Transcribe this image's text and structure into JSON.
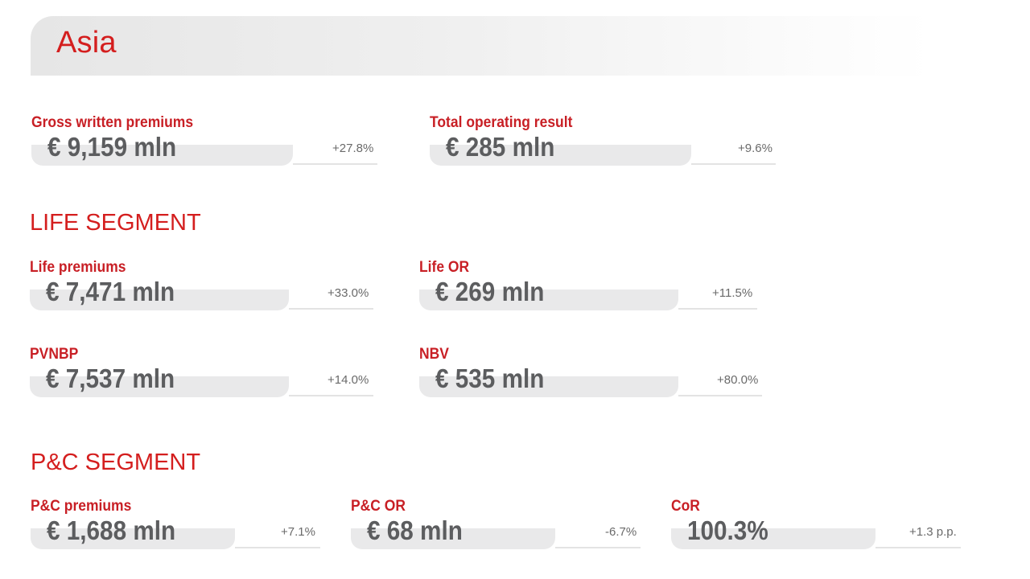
{
  "region": {
    "title": "Asia"
  },
  "group_kpis": [
    {
      "label": "Gross written premiums",
      "value": "€ 9,159 mln",
      "change": "+27.8%"
    },
    {
      "label": "Total operating result",
      "value": "€ 285 mln",
      "change": "+9.6%"
    }
  ],
  "life_segment": {
    "title": "LIFE SEGMENT",
    "kpis": [
      {
        "label": "Life premiums",
        "value": "€ 7,471 mln",
        "change": "+33.0%"
      },
      {
        "label": "Life OR",
        "value": "€ 269 mln",
        "change": "+11.5%"
      },
      {
        "label": "PVNBP",
        "value": "€ 7,537 mln",
        "change": "+14.0%"
      },
      {
        "label": "NBV",
        "value": "€ 535 mln",
        "change": "+80.0%"
      }
    ]
  },
  "pc_segment": {
    "title": "P&C SEGMENT",
    "kpis": [
      {
        "label": "P&C premiums",
        "value": "€ 1,688 mln",
        "change": "+7.1%"
      },
      {
        "label": "P&C OR",
        "value": "€ 68 mln",
        "change": "-6.7%"
      },
      {
        "label": "CoR",
        "value": "100.3%",
        "change": "+1.3 p.p."
      }
    ]
  }
}
